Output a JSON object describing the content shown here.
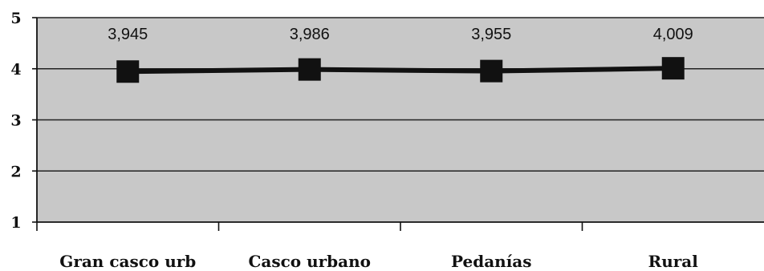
{
  "chart_data": {
    "type": "line",
    "categories": [
      "Gran casco urb",
      "Casco urbano",
      "Pedanías",
      "Rural"
    ],
    "values": [
      3.945,
      3.986,
      3.955,
      4.009
    ],
    "data_labels": [
      "3,945",
      "3,986",
      "3,955",
      "4,009"
    ],
    "y_ticks": [
      "1",
      "2",
      "3",
      "4",
      "5"
    ],
    "ylim": [
      1,
      5
    ],
    "grid": true,
    "marker": "square",
    "colors": {
      "plot_background": "#c8c8c8",
      "line": "#111111",
      "gridline": "#222222"
    }
  }
}
